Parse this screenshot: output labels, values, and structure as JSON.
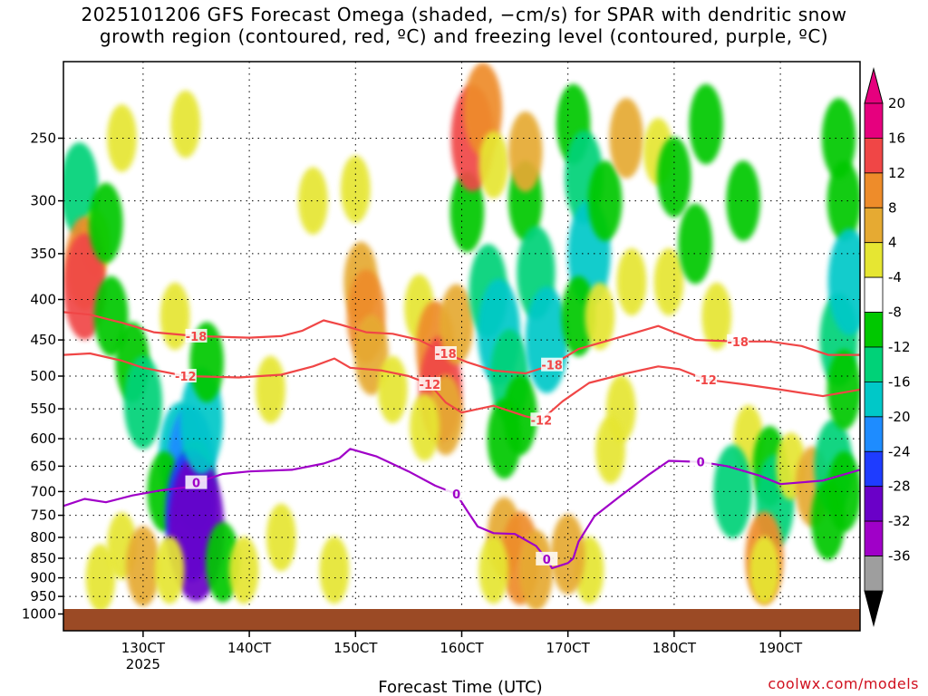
{
  "chart_data": {
    "type": "heatmap",
    "title_line1": "2025101206 GFS Forecast Omega (shaded, −cm/s) for SPAR with dendritic snow",
    "title_line2": "growth region (contoured, red, ºC) and freezing level (contoured, purple, ºC)",
    "xlabel": "Forecast Time (UTC)",
    "ylabel": "",
    "credit": "coolwx.com/models",
    "x_ticks": [
      {
        "label": "130CT",
        "sub": "2025"
      },
      {
        "label": "140CT",
        "sub": ""
      },
      {
        "label": "150CT",
        "sub": ""
      },
      {
        "label": "160CT",
        "sub": ""
      },
      {
        "label": "170CT",
        "sub": ""
      },
      {
        "label": "180CT",
        "sub": ""
      },
      {
        "label": "190CT",
        "sub": ""
      }
    ],
    "x_tick_days": [
      13,
      14,
      15,
      16,
      17,
      18,
      19
    ],
    "xlim_days": [
      12.25,
      19.75
    ],
    "ylim_hPa": [
      1050,
      200
    ],
    "y_ticks": [
      250,
      300,
      350,
      400,
      450,
      500,
      550,
      600,
      650,
      700,
      750,
      800,
      850,
      900,
      950,
      1000
    ],
    "y_tick_labels": [
      "250",
      "300",
      "350",
      "400",
      "450",
      "500",
      "550",
      "600",
      "650",
      "700",
      "750",
      "800",
      "850",
      "900",
      "950",
      "1000"
    ],
    "grid": true,
    "colorbar": {
      "levels": [
        -36,
        -32,
        -28,
        -24,
        -20,
        -16,
        -12,
        -8,
        -4,
        4,
        8,
        12,
        16,
        20
      ],
      "labels": [
        "20",
        "16",
        "12",
        "8",
        "4",
        "-4",
        "-8",
        "-12",
        "-16",
        "-20",
        "-24",
        "-28",
        "-32",
        "-36"
      ],
      "colors": [
        "#9e9e9e",
        "#a000c8",
        "#6a00c8",
        "#1e3cff",
        "#1e8cff",
        "#00c8c8",
        "#00d278",
        "#00c800",
        "#ffffff",
        "#e6e632",
        "#e6aa32",
        "#ee8c2a",
        "#f04646",
        "#e6007e"
      ],
      "under_color": "#000000",
      "over_color": "#e6007e"
    },
    "contours": [
      {
        "name": "dgz-top",
        "value": -18,
        "label": "-18",
        "color": "#f04646",
        "points": [
          [
            12.25,
            415
          ],
          [
            12.5,
            418
          ],
          [
            12.8,
            428
          ],
          [
            13.1,
            440
          ],
          [
            13.5,
            445
          ],
          [
            14.0,
            447
          ],
          [
            14.3,
            445
          ],
          [
            14.5,
            438
          ],
          [
            14.7,
            425
          ],
          [
            14.85,
            430
          ],
          [
            15.1,
            440
          ],
          [
            15.35,
            442
          ],
          [
            15.6,
            450
          ],
          [
            15.85,
            468
          ],
          [
            16.05,
            480
          ],
          [
            16.3,
            492
          ],
          [
            16.6,
            496
          ],
          [
            16.85,
            484
          ],
          [
            17.1,
            462
          ],
          [
            17.4,
            450
          ],
          [
            17.65,
            440
          ],
          [
            17.85,
            432
          ],
          [
            18.0,
            440
          ],
          [
            18.2,
            450
          ],
          [
            18.6,
            452
          ],
          [
            18.9,
            452
          ],
          [
            19.2,
            458
          ],
          [
            19.45,
            470
          ],
          [
            19.75,
            470
          ]
        ]
      },
      {
        "name": "dgz-bottom",
        "value": -12,
        "label": "-12",
        "color": "#f04646",
        "points": [
          [
            12.25,
            470
          ],
          [
            12.5,
            468
          ],
          [
            12.8,
            478
          ],
          [
            13.0,
            488
          ],
          [
            13.4,
            500
          ],
          [
            13.9,
            502
          ],
          [
            14.3,
            498
          ],
          [
            14.6,
            486
          ],
          [
            14.8,
            475
          ],
          [
            14.95,
            488
          ],
          [
            15.25,
            492
          ],
          [
            15.5,
            500
          ],
          [
            15.7,
            512
          ],
          [
            15.85,
            540
          ],
          [
            16.0,
            556
          ],
          [
            16.3,
            545
          ],
          [
            16.6,
            562
          ],
          [
            16.75,
            568
          ],
          [
            16.95,
            538
          ],
          [
            17.2,
            510
          ],
          [
            17.55,
            496
          ],
          [
            17.85,
            486
          ],
          [
            18.05,
            490
          ],
          [
            18.3,
            505
          ],
          [
            18.65,
            512
          ],
          [
            19.0,
            520
          ],
          [
            19.4,
            530
          ],
          [
            19.75,
            520
          ]
        ]
      },
      {
        "name": "freezing-level",
        "value": 0,
        "label": "0",
        "color": "#a000c8",
        "points": [
          [
            12.25,
            730
          ],
          [
            12.45,
            715
          ],
          [
            12.65,
            722
          ],
          [
            12.9,
            708
          ],
          [
            13.15,
            698
          ],
          [
            13.45,
            690
          ],
          [
            13.5,
            682
          ],
          [
            13.75,
            665
          ],
          [
            14.0,
            660
          ],
          [
            14.4,
            657
          ],
          [
            14.7,
            645
          ],
          [
            14.85,
            635
          ],
          [
            14.95,
            618
          ],
          [
            15.2,
            632
          ],
          [
            15.5,
            660
          ],
          [
            15.75,
            688
          ],
          [
            15.95,
            705
          ],
          [
            16.05,
            740
          ],
          [
            16.15,
            775
          ],
          [
            16.3,
            790
          ],
          [
            16.5,
            792
          ],
          [
            16.7,
            820
          ],
          [
            16.8,
            852
          ],
          [
            16.85,
            875
          ],
          [
            17.0,
            862
          ],
          [
            17.05,
            850
          ],
          [
            17.1,
            810
          ],
          [
            17.25,
            752
          ],
          [
            17.5,
            708
          ],
          [
            17.75,
            668
          ],
          [
            17.95,
            640
          ],
          [
            18.25,
            642
          ],
          [
            18.5,
            650
          ],
          [
            18.8,
            668
          ],
          [
            19.0,
            685
          ],
          [
            19.4,
            678
          ],
          [
            19.75,
            657
          ]
        ]
      }
    ],
    "omega_cells": [
      {
        "x": 12.4,
        "p": 290,
        "val": -12
      },
      {
        "x": 12.55,
        "p": 340,
        "val": 4
      },
      {
        "x": 12.45,
        "p": 360,
        "val": 12
      },
      {
        "x": 12.45,
        "p": 385,
        "val": 16
      },
      {
        "x": 12.65,
        "p": 320,
        "val": -8
      },
      {
        "x": 12.7,
        "p": 420,
        "val": -8
      },
      {
        "x": 12.9,
        "p": 480,
        "val": -8
      },
      {
        "x": 13.0,
        "p": 540,
        "val": -12
      },
      {
        "x": 13.35,
        "p": 630,
        "val": -16
      },
      {
        "x": 13.45,
        "p": 650,
        "val": -20
      },
      {
        "x": 13.5,
        "p": 690,
        "val": -12
      },
      {
        "x": 13.2,
        "p": 700,
        "val": -8
      },
      {
        "x": 13.45,
        "p": 750,
        "val": -24
      },
      {
        "x": 13.5,
        "p": 780,
        "val": -28
      },
      {
        "x": 13.55,
        "p": 570,
        "val": -16
      },
      {
        "x": 13.6,
        "p": 480,
        "val": -8
      },
      {
        "x": 12.8,
        "p": 820,
        "val": 4
      },
      {
        "x": 13.0,
        "p": 870,
        "val": 8
      },
      {
        "x": 13.25,
        "p": 880,
        "val": 4
      },
      {
        "x": 12.6,
        "p": 900,
        "val": 4
      },
      {
        "x": 13.75,
        "p": 860,
        "val": -8
      },
      {
        "x": 13.95,
        "p": 880,
        "val": 4
      },
      {
        "x": 14.3,
        "p": 800,
        "val": 4
      },
      {
        "x": 14.8,
        "p": 880,
        "val": 4
      },
      {
        "x": 15.0,
        "p": 290,
        "val": 4
      },
      {
        "x": 15.05,
        "p": 380,
        "val": 8
      },
      {
        "x": 15.1,
        "p": 420,
        "val": 12
      },
      {
        "x": 15.15,
        "p": 470,
        "val": 8
      },
      {
        "x": 15.35,
        "p": 520,
        "val": 4
      },
      {
        "x": 15.6,
        "p": 410,
        "val": 4
      },
      {
        "x": 15.75,
        "p": 460,
        "val": 12
      },
      {
        "x": 15.8,
        "p": 520,
        "val": 16
      },
      {
        "x": 15.85,
        "p": 560,
        "val": 8
      },
      {
        "x": 15.65,
        "p": 580,
        "val": 4
      },
      {
        "x": 15.95,
        "p": 430,
        "val": 8
      },
      {
        "x": 16.05,
        "p": 310,
        "val": -8
      },
      {
        "x": 16.1,
        "p": 250,
        "val": 16
      },
      {
        "x": 16.2,
        "p": 230,
        "val": 12
      },
      {
        "x": 16.3,
        "p": 270,
        "val": 4
      },
      {
        "x": 16.25,
        "p": 390,
        "val": -12
      },
      {
        "x": 16.35,
        "p": 440,
        "val": -16
      },
      {
        "x": 16.45,
        "p": 500,
        "val": -12
      },
      {
        "x": 16.55,
        "p": 560,
        "val": -8
      },
      {
        "x": 16.4,
        "p": 600,
        "val": -8
      },
      {
        "x": 16.6,
        "p": 300,
        "val": -8
      },
      {
        "x": 16.7,
        "p": 370,
        "val": -12
      },
      {
        "x": 16.8,
        "p": 450,
        "val": -16
      },
      {
        "x": 16.6,
        "p": 260,
        "val": 8
      },
      {
        "x": 16.4,
        "p": 800,
        "val": 8
      },
      {
        "x": 16.55,
        "p": 850,
        "val": 12
      },
      {
        "x": 16.7,
        "p": 880,
        "val": 8
      },
      {
        "x": 16.3,
        "p": 880,
        "val": 4
      },
      {
        "x": 17.05,
        "p": 240,
        "val": -8
      },
      {
        "x": 17.15,
        "p": 280,
        "val": -12
      },
      {
        "x": 17.2,
        "p": 350,
        "val": -16
      },
      {
        "x": 17.35,
        "p": 300,
        "val": -8
      },
      {
        "x": 17.1,
        "p": 420,
        "val": -8
      },
      {
        "x": 17.3,
        "p": 420,
        "val": 4
      },
      {
        "x": 17.55,
        "p": 250,
        "val": 8
      },
      {
        "x": 17.6,
        "p": 380,
        "val": 4
      },
      {
        "x": 17.5,
        "p": 550,
        "val": 4
      },
      {
        "x": 17.4,
        "p": 620,
        "val": 4
      },
      {
        "x": 17.2,
        "p": 880,
        "val": 4
      },
      {
        "x": 17.0,
        "p": 840,
        "val": 8
      },
      {
        "x": 17.85,
        "p": 260,
        "val": 4
      },
      {
        "x": 17.95,
        "p": 380,
        "val": 4
      },
      {
        "x": 18.0,
        "p": 280,
        "val": -8
      },
      {
        "x": 18.3,
        "p": 240,
        "val": -8
      },
      {
        "x": 18.7,
        "p": 600,
        "val": 4
      },
      {
        "x": 18.55,
        "p": 700,
        "val": -12
      },
      {
        "x": 18.9,
        "p": 650,
        "val": -8
      },
      {
        "x": 18.95,
        "p": 720,
        "val": -12
      },
      {
        "x": 19.1,
        "p": 650,
        "val": 4
      },
      {
        "x": 19.3,
        "p": 690,
        "val": 8
      },
      {
        "x": 19.5,
        "p": 650,
        "val": -12
      },
      {
        "x": 19.55,
        "p": 450,
        "val": -12
      },
      {
        "x": 19.6,
        "p": 300,
        "val": -8
      },
      {
        "x": 19.55,
        "p": 250,
        "val": -8
      },
      {
        "x": 19.65,
        "p": 380,
        "val": -16
      },
      {
        "x": 19.6,
        "p": 520,
        "val": -8
      },
      {
        "x": 19.6,
        "p": 700,
        "val": -8
      },
      {
        "x": 19.45,
        "p": 760,
        "val": -8
      },
      {
        "x": 18.85,
        "p": 850,
        "val": 12
      },
      {
        "x": 18.85,
        "p": 880,
        "val": 4
      },
      {
        "x": 12.8,
        "p": 250,
        "val": 4
      },
      {
        "x": 13.4,
        "p": 240,
        "val": 4
      },
      {
        "x": 13.3,
        "p": 420,
        "val": 4
      },
      {
        "x": 14.6,
        "p": 300,
        "val": 4
      },
      {
        "x": 14.2,
        "p": 520,
        "val": 4
      },
      {
        "x": 18.2,
        "p": 340,
        "val": -8
      },
      {
        "x": 18.65,
        "p": 300,
        "val": -8
      },
      {
        "x": 18.4,
        "p": 420,
        "val": 4
      }
    ]
  }
}
